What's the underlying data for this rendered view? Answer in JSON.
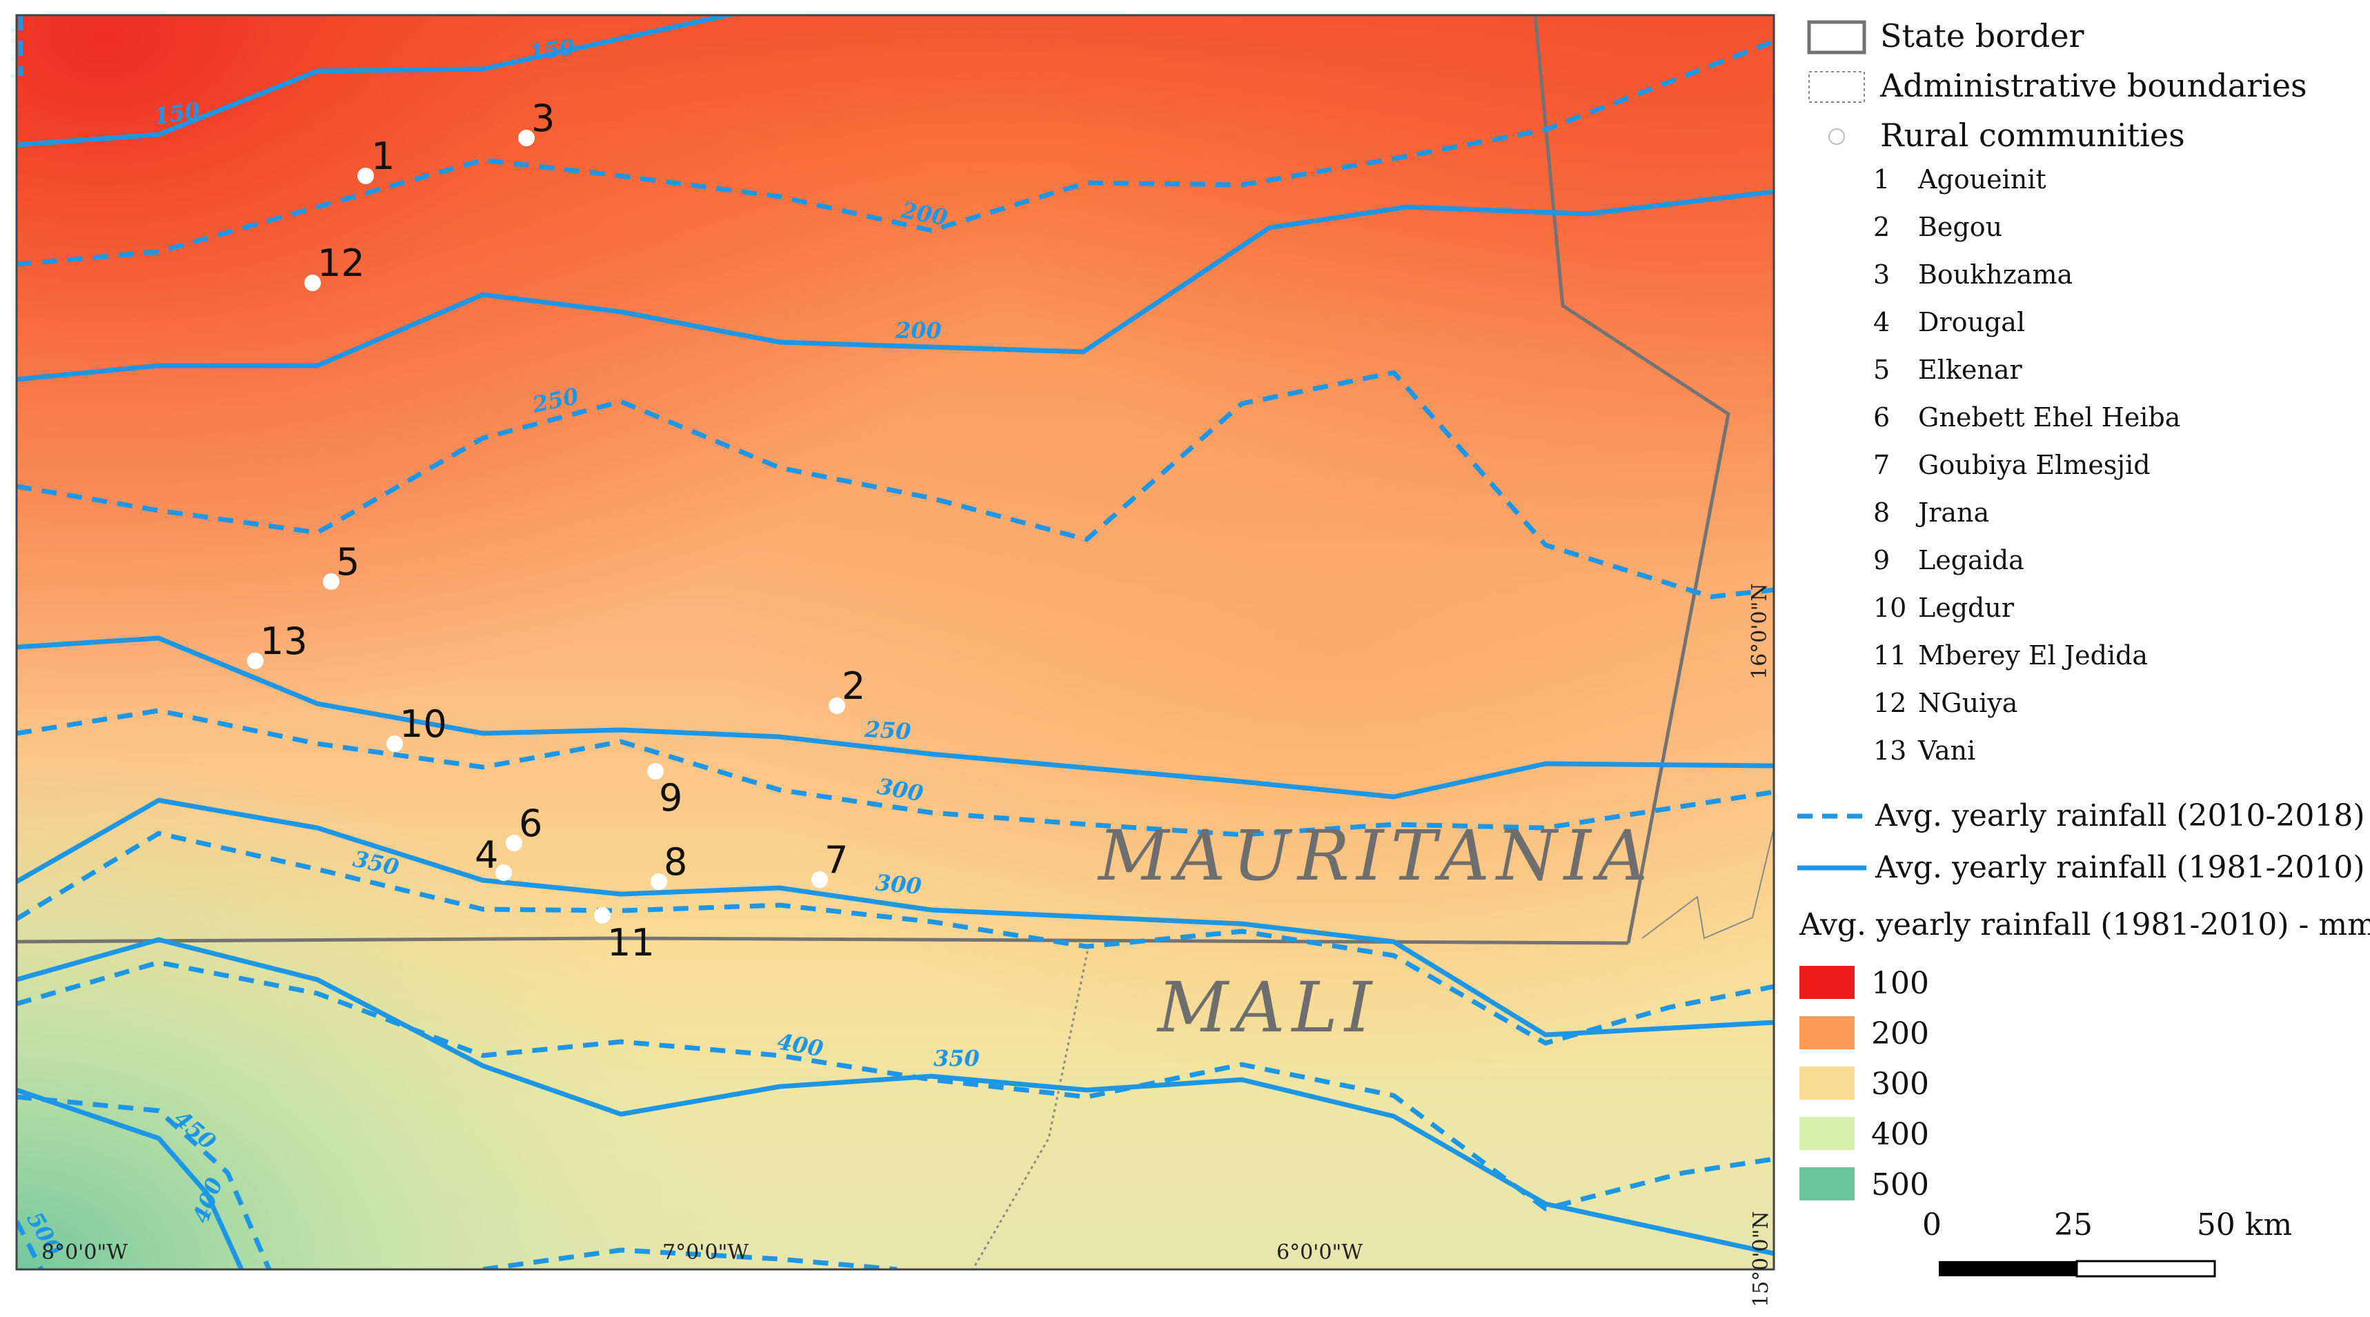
{
  "map": {
    "countries": [
      "MAURITANIA",
      "MALI"
    ],
    "coords": {
      "lon": [
        "8°0'0\"W",
        "7°0'0\"W",
        "6°0'0\"W"
      ],
      "lat": [
        "16°0'0\"N",
        "15°0'0\"N"
      ]
    },
    "contour_labels": {
      "solid": [
        "150",
        "150",
        "200",
        "250",
        "300",
        "350",
        "400"
      ],
      "dashed": [
        "200",
        "250",
        "300",
        "350",
        "400",
        "450",
        "500"
      ]
    },
    "community_points": [
      {
        "id": "1",
        "name": "Agoueinit"
      },
      {
        "id": "2",
        "name": "Begou"
      },
      {
        "id": "3",
        "name": "Boukhzama"
      },
      {
        "id": "4",
        "name": "Drougal"
      },
      {
        "id": "5",
        "name": "Elkenar"
      },
      {
        "id": "6",
        "name": "Gnebett Ehel Heiba"
      },
      {
        "id": "7",
        "name": "Goubiya Elmesjid"
      },
      {
        "id": "8",
        "name": "Jrana"
      },
      {
        "id": "9",
        "name": "Legaida"
      },
      {
        "id": "10",
        "name": "Legdur"
      },
      {
        "id": "11",
        "name": "Mberey El Jedida"
      },
      {
        "id": "12",
        "name": "NGuiya"
      },
      {
        "id": "13",
        "name": "Vani"
      }
    ]
  },
  "legend": {
    "state_border": "State border",
    "admin_boundaries": "Administrative boundaries",
    "rural_communities": "Rural communities",
    "dashed_line": "Avg. yearly rainfall (2010-2018)",
    "solid_line": "Avg. yearly rainfall (1981-2010)",
    "ramp_title": "Avg. yearly rainfall (1981-2010) - mm",
    "ramp": [
      {
        "value": "100",
        "color": "#ee1c1c"
      },
      {
        "value": "200",
        "color": "#fb9a56"
      },
      {
        "value": "300",
        "color": "#fbdc94"
      },
      {
        "value": "400",
        "color": "#d6efad"
      },
      {
        "value": "500",
        "color": "#6cc69c"
      }
    ],
    "scale": {
      "labels": [
        "0",
        "25",
        "50 km"
      ]
    }
  },
  "colors": {
    "contour": "#1e96e6",
    "border": "#737373"
  }
}
